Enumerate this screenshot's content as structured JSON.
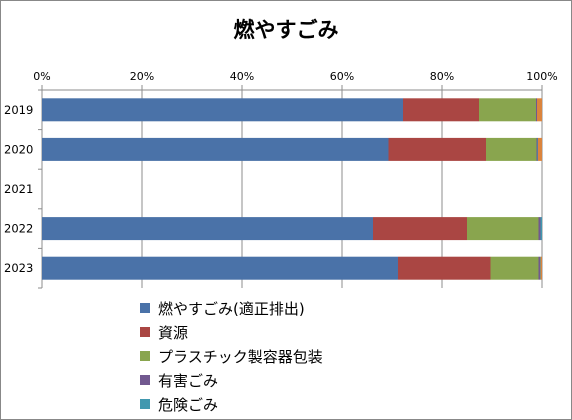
{
  "chart_data": {
    "type": "bar",
    "orientation": "horizontal",
    "stacked": "percent",
    "title": "燃やすごみ",
    "categories": [
      "2019",
      "2020",
      "2021",
      "2022",
      "2023"
    ],
    "xlim": [
      0,
      100
    ],
    "x_ticks": [
      "0%",
      "20%",
      "40%",
      "60%",
      "80%",
      "100%"
    ],
    "grid": true,
    "legend_position": "bottom",
    "series": [
      {
        "name": "燃やすごみ(適正排出)",
        "color": "#4A72A8",
        "values": [
          72.2,
          69.3,
          null,
          66.2,
          71.2
        ]
      },
      {
        "name": "資源",
        "color": "#AA4643",
        "values": [
          15.2,
          19.5,
          null,
          18.8,
          18.5
        ]
      },
      {
        "name": "プラスチック製容器包装",
        "color": "#89A54E",
        "values": [
          11.4,
          10.1,
          null,
          14.3,
          9.6
        ]
      },
      {
        "name": "有害ごみ",
        "color": "#71588F",
        "values": [
          0.2,
          0.2,
          null,
          0.4,
          0.3
        ]
      },
      {
        "name": "危険ごみ",
        "color": "#4198AF",
        "values": [
          0.0,
          0.1,
          null,
          0.3,
          0.1
        ]
      },
      {
        "name": "",
        "color": "#DB843D",
        "values": [
          1.0,
          0.8,
          null,
          0.0,
          0.3
        ]
      }
    ]
  }
}
